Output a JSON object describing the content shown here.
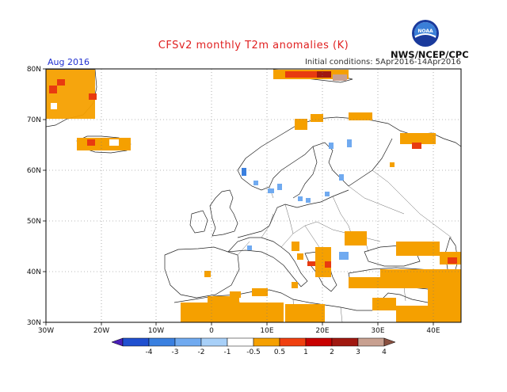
{
  "header": {
    "title": "CFSv2 monthly T2m anomalies (K)",
    "month": "Aug 2016",
    "initial_conditions": "Initial conditions: 5Apr2016-14Apr2016",
    "agency": "NWS/NCEP/CPC",
    "logo_text": "NOAA"
  },
  "axes": {
    "lat_labels": [
      "80N",
      "70N",
      "60N",
      "50N",
      "40N",
      "30N"
    ],
    "lon_labels": [
      "30W",
      "20W",
      "10W",
      "0",
      "10E",
      "20E",
      "30E",
      "40E"
    ]
  },
  "legend": {
    "labels": [
      "-4",
      "-3",
      "-2",
      "-1",
      "-0.5",
      "0.5",
      "1",
      "2",
      "3",
      "4"
    ],
    "colors": [
      "#4a1fb8",
      "#2050d0",
      "#3a80e0",
      "#70aaf0",
      "#a8d0f8",
      "#ffffff",
      "#f5a000",
      "#f04010",
      "#c80000",
      "#a01810",
      "#c8a090",
      "#8a5040"
    ]
  },
  "colors": {
    "orange": "#f5a000",
    "red": "#e83a10",
    "darkred": "#a01810",
    "lightblue": "#70aaf0",
    "blue": "#3a80e0"
  }
}
